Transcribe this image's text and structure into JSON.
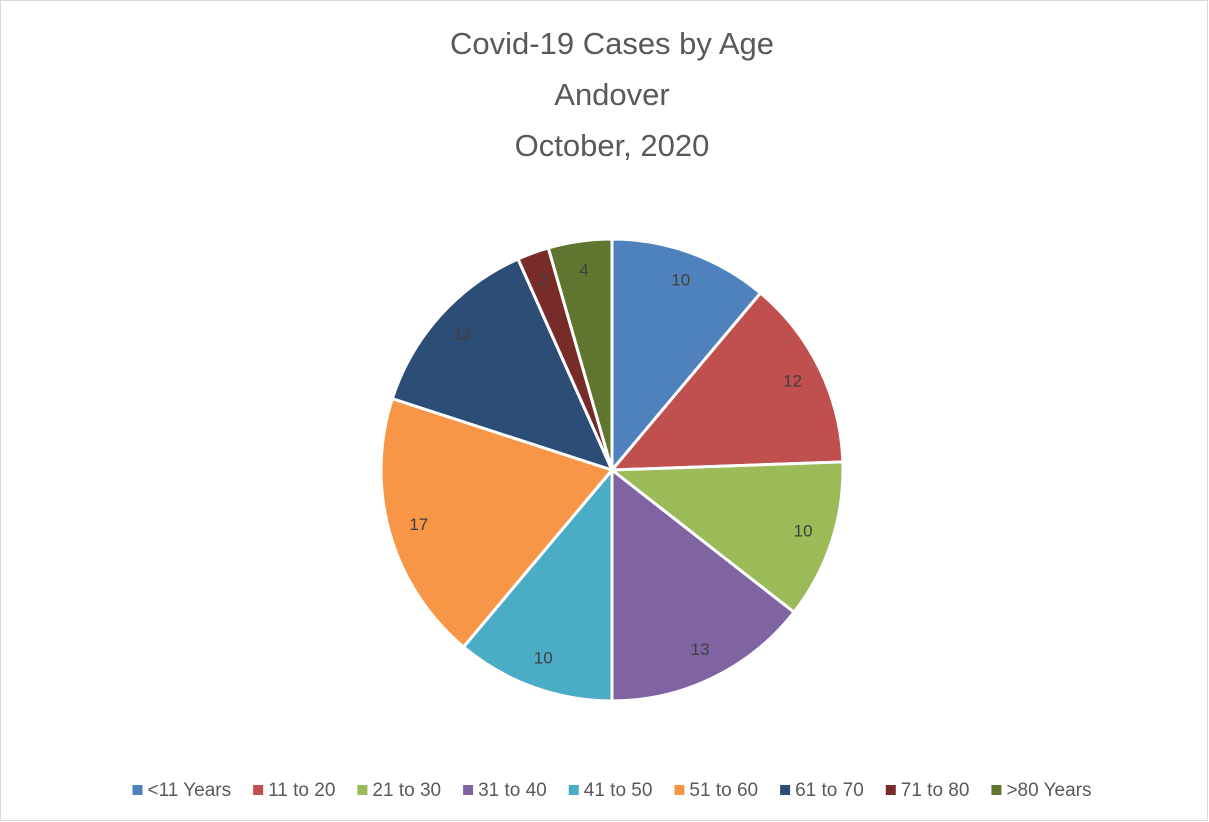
{
  "chart_data": {
    "type": "pie",
    "title": [
      "Covid-19 Cases by Age",
      "Andover",
      "October, 2020"
    ],
    "categories": [
      "<11 Years",
      "11 to 20",
      "21 to 30",
      "31 to 40",
      "41 to 50",
      "51 to 60",
      "61 to 70",
      "71 to 80",
      ">80 Years"
    ],
    "values": [
      10,
      12,
      10,
      13,
      10,
      17,
      12,
      2,
      4
    ],
    "colors": [
      "#4f81bd",
      "#c0504d",
      "#9bbb59",
      "#8064a2",
      "#4bacc6",
      "#f79646",
      "#2c4d75",
      "#772c2a",
      "#5f7530"
    ],
    "legend": "bottom"
  }
}
